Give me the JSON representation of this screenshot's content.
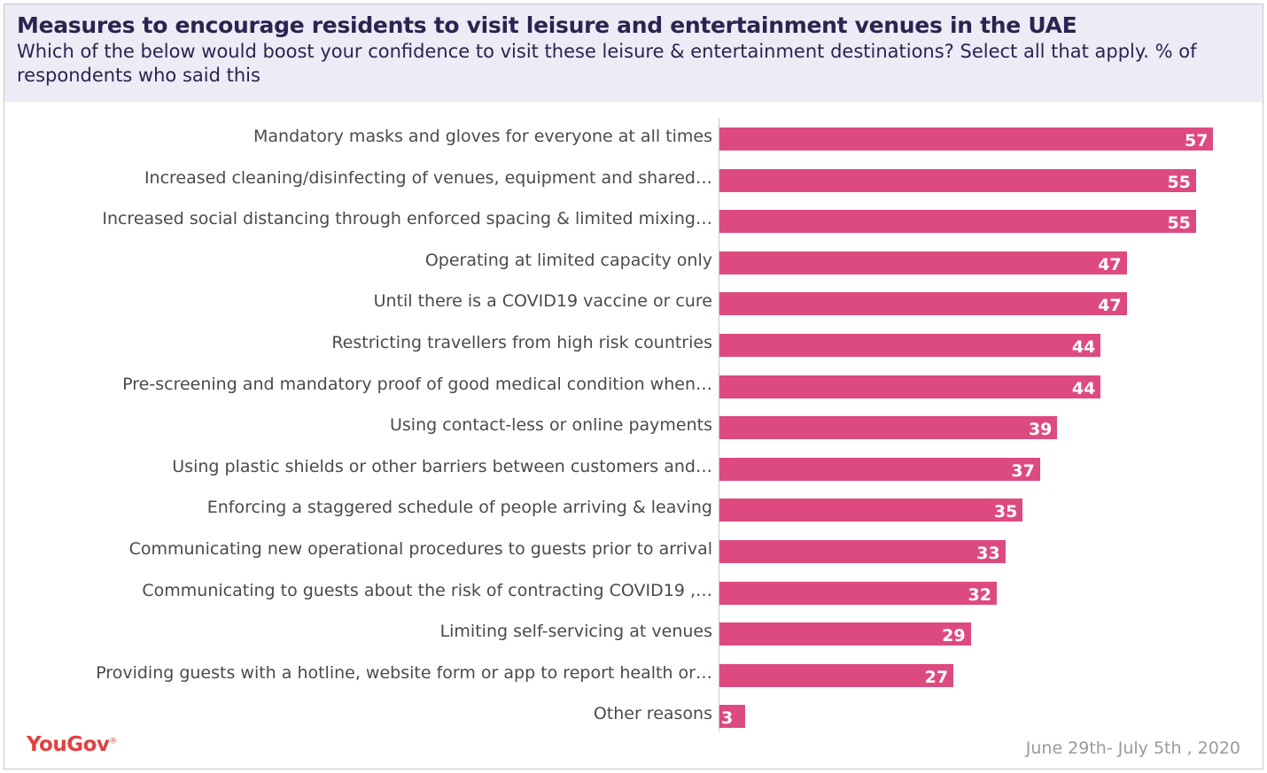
{
  "header": {
    "title": "Measures to encourage residents to visit leisure and entertainment venues in the UAE",
    "subtitle": "Which of the below would boost your confidence to visit these leisure & entertainment destinations? Select all that apply. % of respondents who said this"
  },
  "footer": {
    "logo": "YouGov",
    "date": "June 29th- July 5th , 2020"
  },
  "colors": {
    "bar": "#dd4a80",
    "title": "#2a2450",
    "header_bg": "#eeebf6",
    "logo": "#e0413f"
  },
  "chart_data": {
    "type": "bar",
    "orientation": "horizontal",
    "title": "Measures to encourage residents to visit leisure and entertainment venues in the UAE",
    "categories": [
      "Mandatory masks and gloves for everyone at all times",
      "Increased cleaning/disinfecting of venues, equipment and shared…",
      "Increased social distancing through enforced spacing & limited mixing…",
      "Operating at limited capacity only",
      "Until there is a COVID19 vaccine or cure",
      "Restricting travellers from high risk countries",
      "Pre-screening and mandatory proof of good medical condition when…",
      "Using contact-less or online payments",
      "Using plastic shields or other barriers between customers and…",
      "Enforcing a staggered schedule of people arriving & leaving",
      "Communicating new operational procedures to guests prior to arrival",
      "Communicating to guests about the risk of contracting COVID19 ,…",
      "Limiting self-servicing at venues",
      "Providing guests with a hotline, website form or app to report health or…",
      "Other reasons"
    ],
    "values": [
      57,
      55,
      55,
      47,
      47,
      44,
      44,
      39,
      37,
      35,
      33,
      32,
      29,
      27,
      3
    ],
    "xlim": [
      0,
      60
    ],
    "data_labels": true,
    "grid": false
  }
}
